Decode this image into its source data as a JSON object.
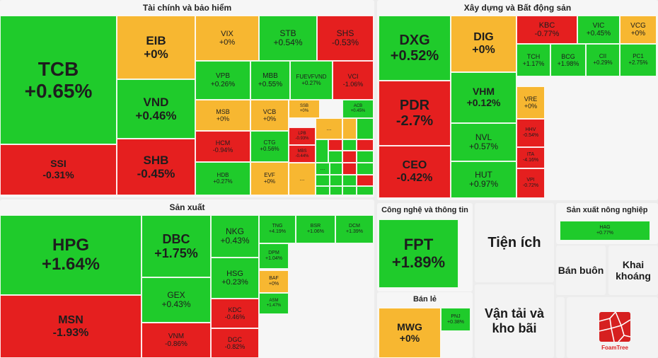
{
  "sectors": {
    "finance": "Tài chính và bảo hiểm",
    "construction": "Xây dựng và Bất động sản",
    "manufacturing": "Sản xuất",
    "tech": "Công nghệ và thông tin",
    "agri": "Sản xuất nông nghiệp",
    "retail": "Bán lẻ",
    "utilities": "Tiện ích",
    "wholesale": "Bán buôn",
    "mining": "Khai khoáng",
    "transport": "Vận tải và kho bãi"
  },
  "more_label": "...",
  "logo_text": "FoamTree",
  "colors": {
    "up": "#1fcb2b",
    "down": "#e51f1f",
    "flat": "#f7b731"
  },
  "finance": [
    {
      "s": "TCB",
      "p": "+0.65%"
    },
    {
      "s": "SSI",
      "p": "-0.31%"
    },
    {
      "s": "EIB",
      "p": "+0%"
    },
    {
      "s": "VND",
      "p": "+0.46%"
    },
    {
      "s": "SHB",
      "p": "-0.45%"
    },
    {
      "s": "VIX",
      "p": "+0%"
    },
    {
      "s": "STB",
      "p": "+0.54%"
    },
    {
      "s": "SHS",
      "p": "-0.53%"
    },
    {
      "s": "VPB",
      "p": "+0.26%"
    },
    {
      "s": "MBB",
      "p": "+0.55%"
    },
    {
      "s": "FUEVFVND",
      "p": "+0.27%"
    },
    {
      "s": "VCI",
      "p": "-1.06%"
    },
    {
      "s": "MSB",
      "p": "+0%"
    },
    {
      "s": "VCB",
      "p": "+0%"
    },
    {
      "s": "SSB",
      "p": "+0%"
    },
    {
      "s": "ACB",
      "p": "+0.45%"
    },
    {
      "s": "HCM",
      "p": "-0.94%"
    },
    {
      "s": "CTG",
      "p": "+0.56%"
    },
    {
      "s": "LPB",
      "p": "-0.93%"
    },
    {
      "s": "MBS",
      "p": "-0.44%"
    },
    {
      "s": "HDB",
      "p": "+0.27%"
    },
    {
      "s": "EVF",
      "p": "+0%"
    }
  ],
  "construction": [
    {
      "s": "DXG",
      "p": "+0.52%"
    },
    {
      "s": "PDR",
      "p": "-2.7%"
    },
    {
      "s": "CEO",
      "p": "-0.42%"
    },
    {
      "s": "DIG",
      "p": "+0%"
    },
    {
      "s": "VHM",
      "p": "+0.12%"
    },
    {
      "s": "NVL",
      "p": "+0.57%"
    },
    {
      "s": "HUT",
      "p": "+0.97%"
    },
    {
      "s": "KBC",
      "p": "-0.77%"
    },
    {
      "s": "VIC",
      "p": "+0.45%"
    },
    {
      "s": "VCG",
      "p": "+0%"
    },
    {
      "s": "TCH",
      "p": "+1.17%"
    },
    {
      "s": "BCG",
      "p": "+1.98%"
    },
    {
      "s": "CII",
      "p": "+0.29%"
    },
    {
      "s": "PC1",
      "p": "+2.75%"
    },
    {
      "s": "VRE",
      "p": "+0%"
    },
    {
      "s": "HHV",
      "p": "-0.54%"
    },
    {
      "s": "ITA",
      "p": "-4.16%"
    },
    {
      "s": "VPI",
      "p": "-0.72%"
    }
  ],
  "manufacturing": [
    {
      "s": "HPG",
      "p": "+1.64%"
    },
    {
      "s": "MSN",
      "p": "-1.93%"
    },
    {
      "s": "DBC",
      "p": "+1.75%"
    },
    {
      "s": "GEX",
      "p": "+0.43%"
    },
    {
      "s": "VNM",
      "p": "-0.86%"
    },
    {
      "s": "NKG",
      "p": "+0.43%"
    },
    {
      "s": "HSG",
      "p": "+0.23%"
    },
    {
      "s": "KDC",
      "p": "-0.46%"
    },
    {
      "s": "DGC",
      "p": "-0.82%"
    },
    {
      "s": "TNG",
      "p": "+4.19%"
    },
    {
      "s": "BSR",
      "p": "+1.06%"
    },
    {
      "s": "DCM",
      "p": "+1.39%"
    },
    {
      "s": "DPM",
      "p": "+1.04%"
    },
    {
      "s": "BAF",
      "p": "+0%"
    },
    {
      "s": "ASM",
      "p": "+1.47%"
    }
  ],
  "tech": [
    {
      "s": "FPT",
      "p": "+1.89%"
    }
  ],
  "retail": [
    {
      "s": "MWG",
      "p": "+0%"
    },
    {
      "s": "PNJ",
      "p": "+0.38%"
    }
  ],
  "agri": [
    {
      "s": "HAG",
      "p": "+0.77%"
    }
  ]
}
